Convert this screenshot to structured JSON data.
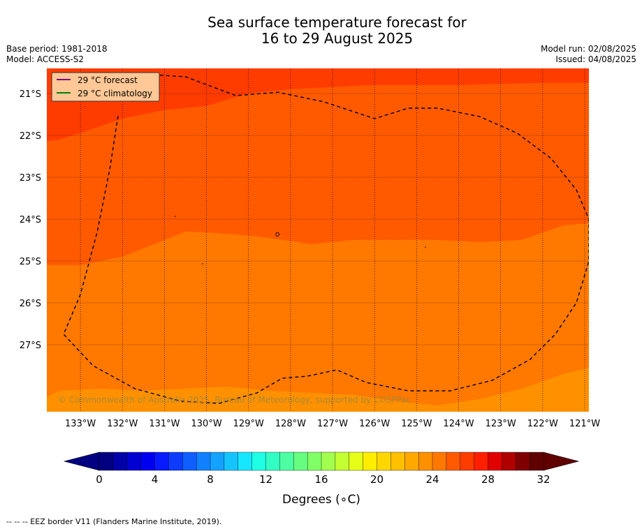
{
  "title": [
    "Sea surface temperature forecast for",
    "16 to 29 August 2025"
  ],
  "meta": {
    "base_period": "Base period: 1981-2018",
    "model": "Model: ACCESS-S2",
    "model_run": "Model run: 02/08/2025",
    "issued": "Issued: 04/08/2025"
  },
  "legend": [
    "29 °C  forecast",
    "29 °C  climatology"
  ],
  "copyright": "© Commonwealth of Australia 2025, Bureau of Meteorology, supported by COSPPac",
  "footer": "--  --  -- EEZ border V11 (Flanders Marine Institute, 2019).",
  "chart_data": {
    "type": "heatmap",
    "title": "Sea surface temperature forecast for 16 to 29 August 2025",
    "xlabel": "",
    "ylabel": "",
    "x_ticks": [
      "133°W",
      "132°W",
      "131°W",
      "130°W",
      "129°W",
      "128°W",
      "127°W",
      "126°W",
      "125°W",
      "124°W",
      "123°W",
      "122°W",
      "121°W"
    ],
    "y_ticks": [
      "21°S",
      "22°S",
      "23°S",
      "24°S",
      "25°S",
      "26°S",
      "27°S"
    ],
    "lon_range": [
      -133.8,
      -120.9
    ],
    "lat_range": [
      -28.6,
      -20.4
    ],
    "colorbar": {
      "label": "Degrees (∘C)",
      "ticks": [
        0,
        4,
        8,
        12,
        16,
        20,
        24,
        28,
        32
      ],
      "range": [
        0,
        32
      ],
      "colors": [
        "#000080",
        "#0000a8",
        "#0000d0",
        "#0000f0",
        "#0a1aff",
        "#0d3cff",
        "#0f5eff",
        "#1180ff",
        "#13a2ff",
        "#15c4ff",
        "#17e6ff",
        "#20ffe6",
        "#33ffc4",
        "#4dffa2",
        "#66ff80",
        "#80ff66",
        "#a2ff4d",
        "#c4ff33",
        "#e6ff17",
        "#ffee00",
        "#ffd700",
        "#ffc000",
        "#ffa800",
        "#ff9000",
        "#ff7800",
        "#ff5a00",
        "#ff3c00",
        "#ff1e00",
        "#e00000",
        "#b00000",
        "#800000",
        "#600000"
      ]
    },
    "contours": [
      {
        "level": 26.5,
        "points": [
          [
            -133.8,
            -21.5
          ],
          [
            -133.5,
            -21.3
          ],
          [
            -133,
            -21.05
          ],
          [
            -132,
            -20.7
          ],
          [
            -131.5,
            -20.4
          ]
        ]
      },
      {
        "level": 26,
        "points": [
          [
            -133.8,
            -22.15
          ],
          [
            -133.5,
            -22.1
          ],
          [
            -133,
            -21.95
          ],
          [
            -132,
            -21.6
          ],
          [
            -131,
            -21.4
          ],
          [
            -130,
            -21.3
          ],
          [
            -129,
            -21.0
          ],
          [
            -128,
            -20.9
          ],
          [
            -126,
            -20.8
          ],
          [
            -124,
            -20.8
          ],
          [
            -122,
            -20.75
          ],
          [
            -121.5,
            -20.75
          ],
          [
            -120.9,
            -20.75
          ]
        ]
      },
      {
        "level": 25.5,
        "points": [
          [
            -133.8,
            -23.8
          ],
          [
            -133.5,
            -23.85
          ],
          [
            -132.5,
            -23.7
          ],
          [
            -131.5,
            -23.3
          ],
          [
            -130.5,
            -23.05
          ],
          [
            -129.5,
            -22.85
          ],
          [
            -128.5,
            -22.9
          ],
          [
            -127.5,
            -22.95
          ],
          [
            -126.5,
            -22.8
          ],
          [
            -125.5,
            -22.55
          ],
          [
            -124.5,
            -22.2
          ],
          [
            -123.5,
            -22.05
          ],
          [
            -122.5,
            -21.9
          ],
          [
            -121.5,
            -21.65
          ],
          [
            -120.9,
            -21.6
          ]
        ]
      },
      {
        "level": 25,
        "points": [
          [
            -133.8,
            -25.1
          ],
          [
            -133,
            -25.1
          ],
          [
            -132,
            -24.9
          ],
          [
            -131,
            -24.5
          ],
          [
            -130.5,
            -24.3
          ],
          [
            -129.5,
            -24.35
          ],
          [
            -128.5,
            -24.45
          ],
          [
            -127.5,
            -24.6
          ],
          [
            -126.5,
            -24.5
          ],
          [
            -125.5,
            -24.5
          ],
          [
            -124.5,
            -24.5
          ],
          [
            -123.5,
            -24.55
          ],
          [
            -122.5,
            -24.5
          ],
          [
            -121.5,
            -24.15
          ],
          [
            -120.9,
            -24.1
          ]
        ]
      },
      {
        "level": 24.5,
        "points": [
          [
            -133.8,
            -26.55
          ],
          [
            -133,
            -26.35
          ],
          [
            -132,
            -26.2
          ],
          [
            -131,
            -26.15
          ],
          [
            -130,
            -26.0
          ],
          [
            -129,
            -26.0
          ],
          [
            -128,
            -25.95
          ],
          [
            -127.5,
            -25.9
          ],
          [
            -126.5,
            -26.05
          ],
          [
            -125.5,
            -26.4
          ],
          [
            -124.5,
            -26.65
          ],
          [
            -123.5,
            -26.65
          ],
          [
            -122.5,
            -26.55
          ],
          [
            -121.5,
            -26.2
          ],
          [
            -120.9,
            -26.0
          ]
        ]
      },
      {
        "level": 24,
        "points": [
          [
            -133.8,
            -28.25
          ],
          [
            -133.5,
            -28.1
          ],
          [
            -132.5,
            -28.05
          ],
          [
            -131.5,
            -28.1
          ],
          [
            -130.5,
            -28.05
          ],
          [
            -129.5,
            -28.0
          ],
          [
            -128.5,
            -28.1
          ],
          [
            -127.5,
            -28.15
          ],
          [
            -126.5,
            -28.2
          ],
          [
            -125.5,
            -28.35
          ],
          [
            -124.5,
            -28.45
          ],
          [
            -123.5,
            -28.3
          ],
          [
            -122.5,
            -28.05
          ],
          [
            -121.5,
            -27.7
          ],
          [
            -120.9,
            -27.55
          ]
        ]
      }
    ],
    "eez_border": [
      [
        -132.4,
        -20.9
      ],
      [
        -131.3,
        -20.55
      ],
      [
        -130.5,
        -20.6
      ],
      [
        -129.3,
        -21.05
      ],
      [
        -128.3,
        -20.97
      ],
      [
        -127.2,
        -21.2
      ],
      [
        -126.0,
        -21.6
      ],
      [
        -125.2,
        -21.35
      ],
      [
        -124.5,
        -21.35
      ],
      [
        -123.5,
        -21.55
      ],
      [
        -122.6,
        -21.95
      ],
      [
        -121.8,
        -22.55
      ],
      [
        -121.2,
        -23.3
      ],
      [
        -120.9,
        -24.0
      ],
      [
        -120.9,
        -25.0
      ],
      [
        -121.2,
        -26.0
      ],
      [
        -121.7,
        -26.75
      ],
      [
        -122.3,
        -27.35
      ],
      [
        -123.2,
        -27.85
      ],
      [
        -124.2,
        -28.1
      ],
      [
        -125.2,
        -28.1
      ],
      [
        -126.2,
        -27.9
      ],
      [
        -126.9,
        -27.6
      ],
      [
        -127.6,
        -27.75
      ],
      [
        -128.2,
        -27.8
      ],
      [
        -128.8,
        -28.15
      ],
      [
        -129.7,
        -28.4
      ],
      [
        -130.6,
        -28.35
      ],
      [
        -131.7,
        -28.05
      ],
      [
        -132.7,
        -27.5
      ],
      [
        -133.4,
        -26.75
      ],
      [
        -133.0,
        -25.8
      ],
      [
        -132.6,
        -24.3
      ],
      [
        -132.3,
        -22.8
      ],
      [
        -132.1,
        -21.5
      ]
    ]
  }
}
